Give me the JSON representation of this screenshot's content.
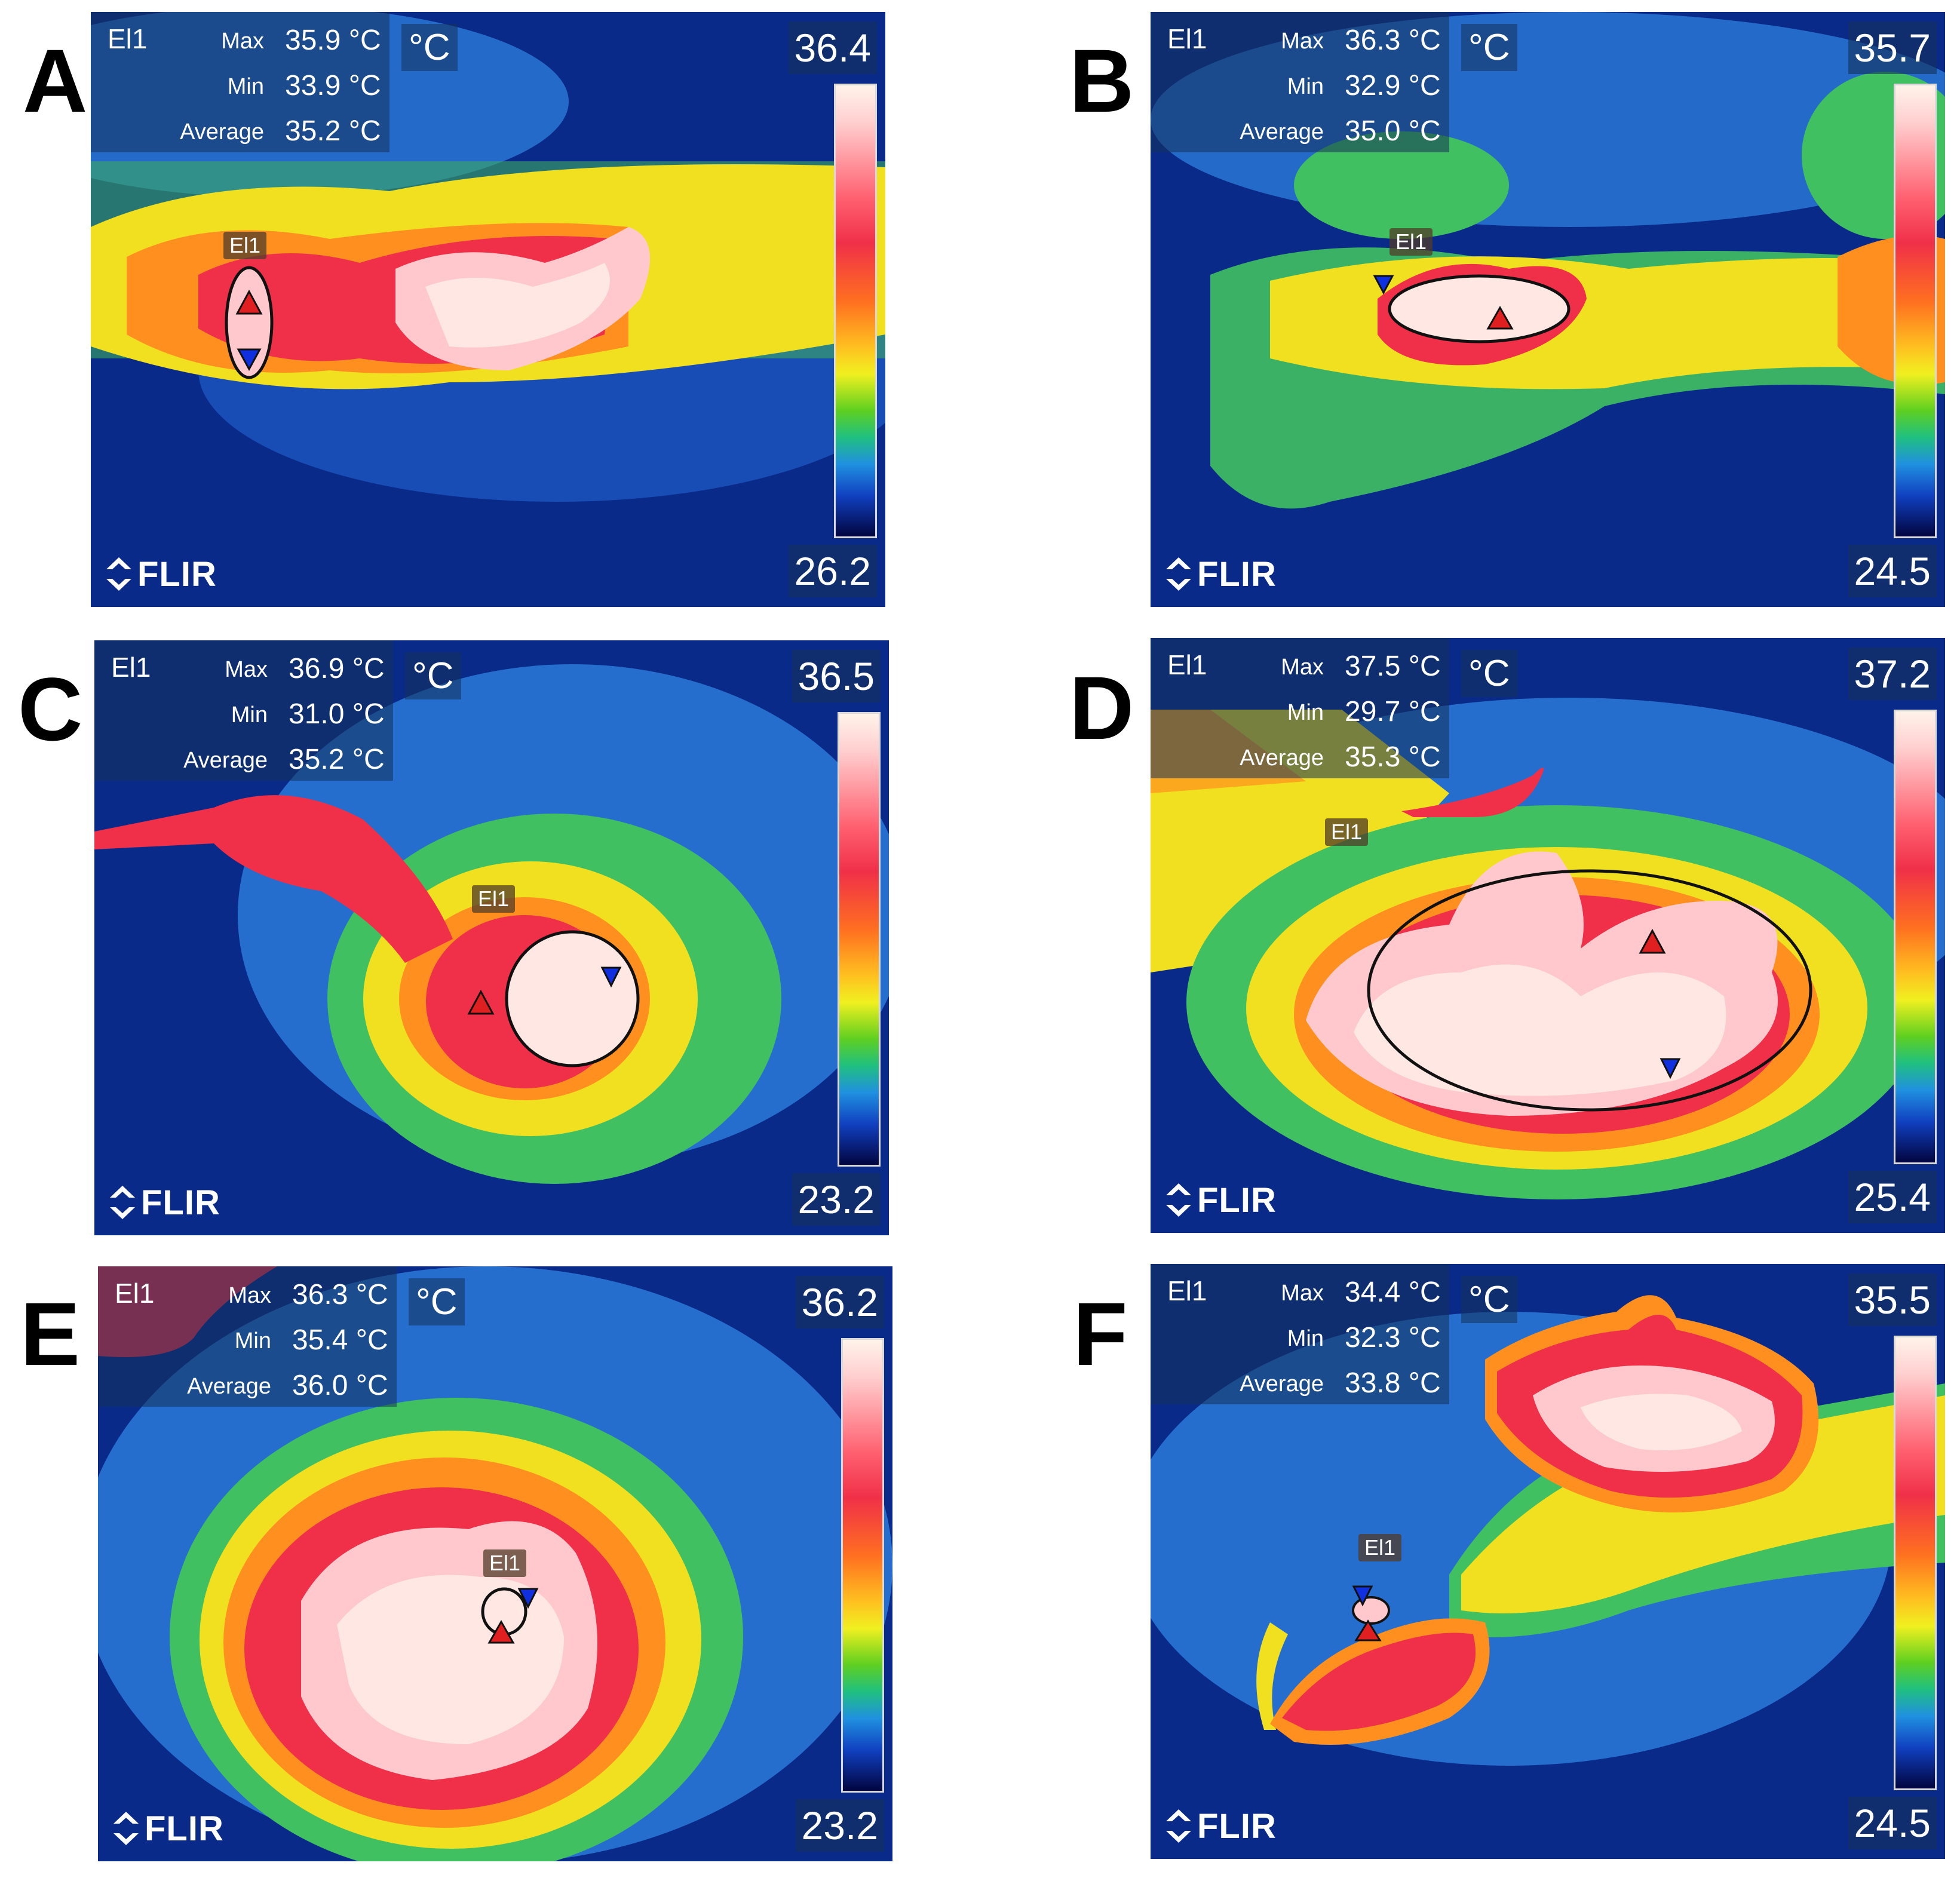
{
  "panels": [
    {
      "letter": "A",
      "roi": "El1",
      "max_label": "Max",
      "max": "35.9 °C",
      "min_label": "Min",
      "min": "33.9 °C",
      "avg_label": "Average",
      "avg": "35.2 °C",
      "unit": "°C",
      "scale_max": "36.4",
      "scale_min": "26.2",
      "logo": "FLIR"
    },
    {
      "letter": "B",
      "roi": "El1",
      "max_label": "Max",
      "max": "36.3 °C",
      "min_label": "Min",
      "min": "32.9 °C",
      "avg_label": "Average",
      "avg": "35.0 °C",
      "unit": "°C",
      "scale_max": "35.7",
      "scale_min": "24.5",
      "logo": "FLIR"
    },
    {
      "letter": "C",
      "roi": "El1",
      "max_label": "Max",
      "max": "36.9 °C",
      "min_label": "Min",
      "min": "31.0 °C",
      "avg_label": "Average",
      "avg": "35.2 °C",
      "unit": "°C",
      "scale_max": "36.5",
      "scale_min": "23.2",
      "logo": "FLIR"
    },
    {
      "letter": "D",
      "roi": "El1",
      "max_label": "Max",
      "max": "37.5 °C",
      "min_label": "Min",
      "min": "29.7 °C",
      "avg_label": "Average",
      "avg": "35.3 °C",
      "unit": "°C",
      "scale_max": "37.2",
      "scale_min": "25.4",
      "logo": "FLIR"
    },
    {
      "letter": "E",
      "roi": "El1",
      "max_label": "Max",
      "max": "36.3 °C",
      "min_label": "Min",
      "min": "35.4 °C",
      "avg_label": "Average",
      "avg": "36.0 °C",
      "unit": "°C",
      "scale_max": "36.2",
      "scale_min": "23.2",
      "logo": "FLIR"
    },
    {
      "letter": "F",
      "roi": "El1",
      "max_label": "Max",
      "max": "34.4 °C",
      "min_label": "Min",
      "min": "32.3 °C",
      "avg_label": "Average",
      "avg": "33.8 °C",
      "unit": "°C",
      "scale_max": "35.5",
      "scale_min": "24.5",
      "logo": "FLIR"
    }
  ],
  "colors": {
    "cold": "#0a2a8a",
    "cool": "#2a7ad8",
    "mid": "#f0e020",
    "warm": "#f03048",
    "hot": "#ffe8e4"
  }
}
